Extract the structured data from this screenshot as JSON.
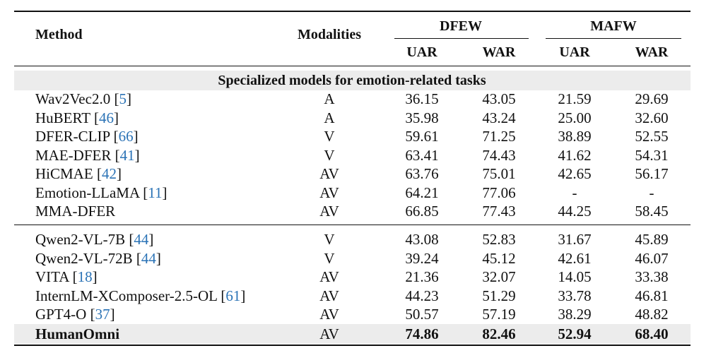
{
  "header": {
    "method": "Method",
    "modalities": "Modalities",
    "group_dfew": "DFEW",
    "group_mafw": "MAFW",
    "dfew_uar": "UAR",
    "dfew_war": "WAR",
    "mafw_uar": "UAR",
    "mafw_war": "WAR"
  },
  "section_title": "Specialized models for emotion-related tasks",
  "group1": [
    {
      "name": "Wav2Vec2.0",
      "cite": "5",
      "mod": "A",
      "dfew_uar": "36.15",
      "dfew_war": "43.05",
      "mafw_uar": "21.59",
      "mafw_war": "29.69"
    },
    {
      "name": "HuBERT",
      "cite": "46",
      "mod": "A",
      "dfew_uar": "35.98",
      "dfew_war": "43.24",
      "mafw_uar": "25.00",
      "mafw_war": "32.60"
    },
    {
      "name": "DFER-CLIP",
      "cite": "66",
      "mod": "V",
      "dfew_uar": "59.61",
      "dfew_war": "71.25",
      "mafw_uar": "38.89",
      "mafw_war": "52.55"
    },
    {
      "name": "MAE-DFER",
      "cite": "41",
      "mod": "V",
      "dfew_uar": "63.41",
      "dfew_war": "74.43",
      "mafw_uar": "41.62",
      "mafw_war": "54.31"
    },
    {
      "name": "HiCMAE",
      "cite": "42",
      "mod": "AV",
      "dfew_uar": "63.76",
      "dfew_war": "75.01",
      "mafw_uar": "42.65",
      "mafw_war": "56.17"
    },
    {
      "name": "Emotion-LLaMA",
      "cite": "11",
      "mod": "AV",
      "dfew_uar": "64.21",
      "dfew_war": "77.06",
      "mafw_uar": "-",
      "mafw_war": "-"
    },
    {
      "name": "MMA-DFER",
      "cite": "",
      "mod": "AV",
      "dfew_uar": "66.85",
      "dfew_war": "77.43",
      "mafw_uar": "44.25",
      "mafw_war": "58.45"
    }
  ],
  "group2": [
    {
      "name": "Qwen2-VL-7B",
      "cite": "44",
      "mod": "V",
      "dfew_uar": "43.08",
      "dfew_war": "52.83",
      "mafw_uar": "31.67",
      "mafw_war": "45.89"
    },
    {
      "name": "Qwen2-VL-72B",
      "cite": "44",
      "mod": "V",
      "dfew_uar": "39.24",
      "dfew_war": "45.12",
      "mafw_uar": "42.61",
      "mafw_war": "46.07"
    },
    {
      "name": "VITA",
      "cite": "18",
      "mod": "AV",
      "dfew_uar": "21.36",
      "dfew_war": "32.07",
      "mafw_uar": "14.05",
      "mafw_war": "33.38"
    },
    {
      "name": "InternLM-XComposer-2.5-OL",
      "cite": "61",
      "mod": "AV",
      "dfew_uar": "44.23",
      "dfew_war": "51.29",
      "mafw_uar": "33.78",
      "mafw_war": "46.81"
    },
    {
      "name": "GPT4-O",
      "cite": "37",
      "mod": "AV",
      "dfew_uar": "50.57",
      "dfew_war": "57.19",
      "mafw_uar": "38.29",
      "mafw_war": "48.82"
    }
  ],
  "final_row": {
    "name": "HumanOmni",
    "mod": "AV",
    "dfew_uar": "74.86",
    "dfew_war": "82.46",
    "mafw_uar": "52.94",
    "mafw_war": "68.40"
  }
}
